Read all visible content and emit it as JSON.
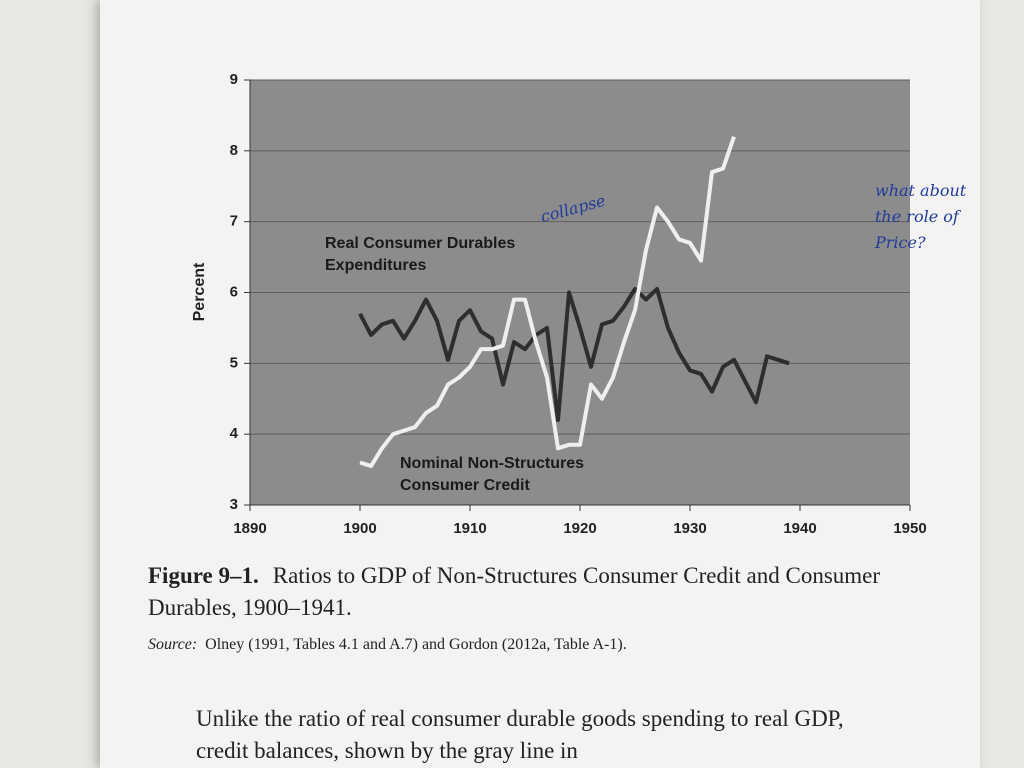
{
  "chart_data": {
    "type": "line",
    "ylabel": "Percent",
    "x": [
      1900,
      1901,
      1902,
      1903,
      1904,
      1905,
      1906,
      1907,
      1908,
      1909,
      1910,
      1911,
      1912,
      1913,
      1914,
      1915,
      1916,
      1917,
      1918,
      1919,
      1920,
      1921,
      1922,
      1923,
      1924,
      1925,
      1926,
      1927,
      1928,
      1929,
      1930,
      1931,
      1932,
      1933,
      1934,
      1935,
      1936,
      1937,
      1938,
      1939
    ],
    "series": [
      {
        "name": "Real Consumer Durables Expenditures",
        "color": "#2e2e2e",
        "values": [
          5.7,
          5.4,
          5.55,
          5.6,
          5.35,
          5.6,
          5.9,
          5.6,
          5.05,
          5.6,
          5.75,
          5.45,
          5.35,
          4.7,
          5.3,
          5.2,
          5.4,
          5.5,
          4.2,
          6.0,
          5.5,
          4.95,
          5.55,
          5.6,
          5.8,
          6.05,
          5.9,
          6.05,
          5.5,
          5.15,
          4.9,
          4.85,
          4.6,
          4.95,
          5.05,
          4.75,
          4.45,
          5.1,
          5.05,
          5.0
        ]
      },
      {
        "name": "Nominal Non-Structures Consumer Credit",
        "color": "#efefef",
        "values": [
          3.6,
          3.55,
          3.8,
          4.0,
          4.05,
          4.1,
          4.3,
          4.4,
          4.7,
          4.8,
          4.95,
          5.2,
          5.2,
          5.25,
          5.9,
          5.9,
          5.3,
          4.8,
          3.8,
          3.85,
          3.85,
          4.7,
          4.5,
          4.8,
          5.3,
          5.75,
          6.6,
          7.2,
          7.0,
          6.75,
          6.7,
          6.45,
          7.7,
          7.75,
          8.2,
          null,
          null,
          null,
          null,
          null
        ]
      }
    ],
    "xlim": [
      1890,
      1950
    ],
    "xticks": [
      1890,
      1900,
      1910,
      1920,
      1930,
      1940,
      1950
    ],
    "ylim": [
      3,
      9
    ],
    "yticks": [
      3,
      4,
      5,
      6,
      7,
      8,
      9
    ],
    "grid": true,
    "plot_background": "#8c8c8c"
  },
  "handwritten": [
    "collapse",
    "what about the role of Price?"
  ],
  "caption": {
    "label": "Figure 9–1.",
    "text": "Ratios to GDP of Non-Structures Consumer Credit and Consumer Durables, 1900–1941."
  },
  "source": {
    "label": "Source:",
    "text": "Olney (1991, Tables 4.1 and A.7) and Gordon (2012a, Table A-1)."
  },
  "body": [
    "Unlike the ratio of real consumer durable goods spending to real GDP,",
    "credit balances, shown by the gray line in"
  ]
}
